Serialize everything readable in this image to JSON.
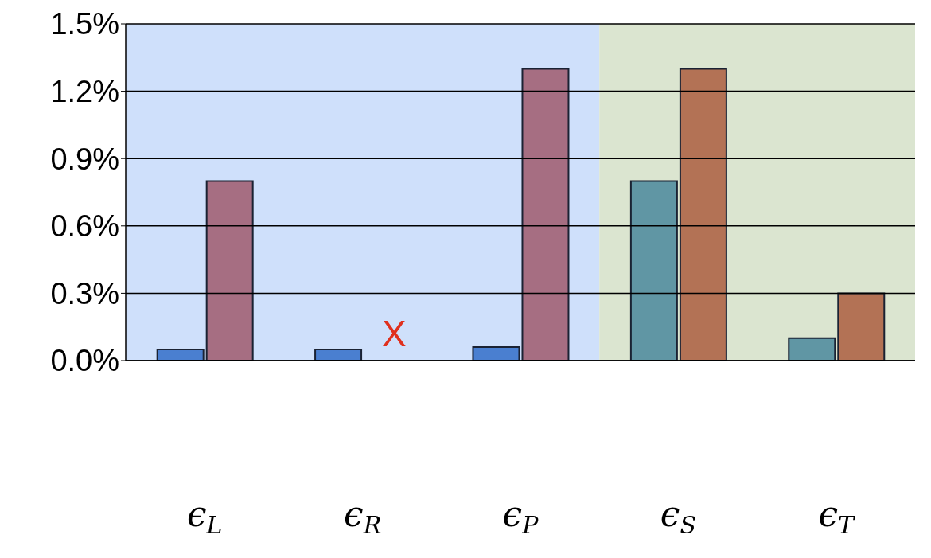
{
  "chart_data": {
    "type": "bar",
    "categories": [
      "ϵ$_{L}$",
      "ϵ$_{R}$",
      "ϵ$_{P}$",
      "ϵ$_{S}$",
      "ϵ$_{T}$"
    ],
    "series": [
      {
        "colors": [
          "#4a7fd0",
          "#4a7fd0",
          "#4a7fd0",
          "#6096a4",
          "#6096a4"
        ],
        "values": [
          0.05,
          0.05,
          0.06,
          0.8,
          0.1
        ]
      },
      {
        "colors": [
          "#a66e82",
          "#a66e82",
          "#a66e82",
          "#b37255",
          "#b37255"
        ],
        "values": [
          0.8,
          null,
          1.3,
          1.3,
          0.3
        ]
      }
    ],
    "ylim": [
      0,
      1.5
    ],
    "yticks": [
      {
        "value": 0,
        "label": "0.0%"
      },
      {
        "value": 0.3,
        "label": "0.3%"
      },
      {
        "value": 0.6,
        "label": "0.6%"
      },
      {
        "value": 0.9,
        "label": "0.9%"
      },
      {
        "value": 1.2,
        "label": "1.2%"
      },
      {
        "value": 1.5,
        "label": "1.5%"
      }
    ],
    "grid": "y",
    "bands": [
      {
        "axis": "x",
        "from": "ϵ$_{L}$",
        "to": "ϵ$_{P}$",
        "color": "#cfe0fb"
      },
      {
        "axis": "x",
        "from": "ϵ$_{S}$",
        "to": "ϵ$_{T}$",
        "color": "#dbe5d0"
      }
    ],
    "annotations": [
      "X"
    ]
  }
}
